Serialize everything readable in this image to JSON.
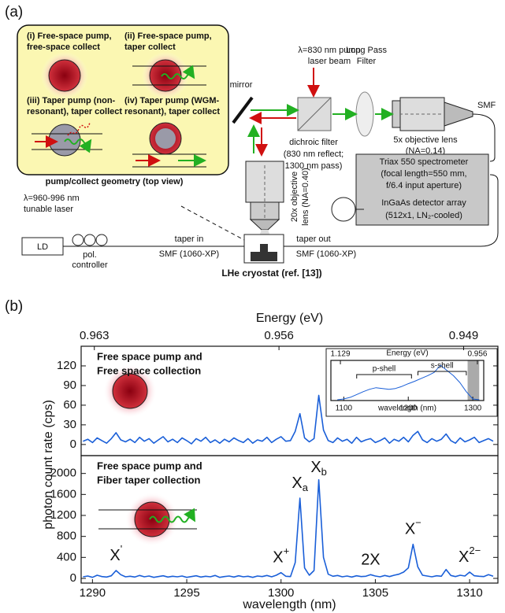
{
  "diagram": {
    "label": "(a)",
    "geometry": {
      "i": [
        "(i) Free-space pump,",
        "free-space collect"
      ],
      "ii": [
        "(ii) Free-space pump,",
        "taper collect"
      ],
      "iii": [
        "(iii) Taper pump (non-",
        "resonant), taper collect"
      ],
      "iv": [
        "(iv) Taper pump (WGM-",
        "resonant), taper collect"
      ],
      "caption": "pump/collect geometry (top view)"
    },
    "pump_laser": [
      "λ=830 nm pump",
      "laser beam"
    ],
    "long_pass": [
      "Long Pass",
      "Filter"
    ],
    "mirror": "mirror",
    "dichroic": [
      "dichroic filter",
      "(830 nm reflect;",
      "1300 nm pass)"
    ],
    "objective_5x": [
      "5x objective lens",
      "(NA=0.14)"
    ],
    "smf": "SMF",
    "spectrometer": [
      "Triax 550 spectrometer",
      "(focal length=550 mm,",
      "f/6.4 input aperture)"
    ],
    "detector": [
      "InGaAs detector array",
      "(512x1, LN₂-cooled)"
    ],
    "objective_20x": [
      "20x objective",
      "lens (NA=0.40)"
    ],
    "tunable_laser": [
      "λ=960-996 nm",
      "tunable laser"
    ],
    "ld": "LD",
    "pol": [
      "pol.",
      "controller"
    ],
    "taper_in": [
      "taper in",
      "SMF (1060-XP)"
    ],
    "taper_out": [
      "taper out",
      "SMF (1060-XP)"
    ],
    "cryostat": "LHe cryostat (ref. [13])"
  },
  "panel_b_label": "(b)",
  "chart_data": [
    {
      "type": "line",
      "title": [
        "Free space pump and",
        "Free space collection"
      ],
      "ylabel": "photon count rate (cps)",
      "x2label": "Energy (eV)",
      "x2lim": [
        0.9635,
        0.9477
      ],
      "x2ticks": [
        0.963,
        0.956,
        0.949
      ],
      "xlim": [
        1289.4,
        1311.5
      ],
      "ylim": [
        -17,
        150
      ],
      "yticks": [
        0,
        30,
        60,
        90,
        120
      ],
      "x": [
        1289.5,
        1289.75,
        1290,
        1290.25,
        1290.5,
        1290.75,
        1291,
        1291.25,
        1291.5,
        1291.75,
        1292,
        1292.25,
        1292.5,
        1292.75,
        1293,
        1293.25,
        1293.5,
        1293.75,
        1294,
        1294.25,
        1294.5,
        1294.75,
        1295,
        1295.25,
        1295.5,
        1295.75,
        1296,
        1296.25,
        1296.5,
        1296.75,
        1297,
        1297.25,
        1297.5,
        1297.75,
        1298,
        1298.25,
        1298.5,
        1298.75,
        1299,
        1299.25,
        1299.5,
        1299.75,
        1300,
        1300.25,
        1300.5,
        1300.75,
        1301,
        1301.25,
        1301.5,
        1301.75,
        1302,
        1302.25,
        1302.5,
        1302.75,
        1303,
        1303.25,
        1303.5,
        1303.75,
        1304,
        1304.25,
        1304.5,
        1304.75,
        1305,
        1305.25,
        1305.5,
        1305.75,
        1306,
        1306.25,
        1306.5,
        1306.75,
        1307,
        1307.25,
        1307.5,
        1307.75,
        1308,
        1308.25,
        1308.5,
        1308.75,
        1309,
        1309.25,
        1309.5,
        1309.75,
        1310,
        1310.25,
        1310.5,
        1310.75,
        1311,
        1311.25
      ],
      "series": [
        {
          "color": "#1a5fd8",
          "values": [
            5,
            8,
            3,
            10,
            6,
            2,
            9,
            18,
            7,
            4,
            8,
            3,
            11,
            5,
            9,
            2,
            7,
            12,
            4,
            8,
            3,
            10,
            6,
            1,
            9,
            5,
            11,
            3,
            7,
            2,
            8,
            4,
            10,
            6,
            3,
            9,
            2,
            7,
            5,
            11,
            3,
            8,
            12,
            5,
            6,
            20,
            47,
            10,
            4,
            9,
            75,
            22,
            6,
            3,
            10,
            5,
            8,
            2,
            11,
            4,
            7,
            9,
            3,
            6,
            10,
            2,
            8,
            5,
            11,
            4,
            14,
            20,
            7,
            3,
            9,
            5,
            8,
            16,
            6,
            2,
            10,
            4,
            7,
            11,
            3,
            6,
            9,
            5
          ]
        }
      ]
    },
    {
      "type": "line",
      "title": [
        "Free space pump and",
        "Fiber taper collection"
      ],
      "xlabel": "wavelength (nm)",
      "xlim": [
        1289.4,
        1311.5
      ],
      "xticks": [
        1290,
        1295,
        1300,
        1305,
        1310
      ],
      "ylim": [
        -90,
        2340
      ],
      "yticks": [
        0,
        400,
        800,
        1200,
        1600,
        2000
      ],
      "x": [
        1289.5,
        1289.75,
        1290,
        1290.25,
        1290.5,
        1290.75,
        1291,
        1291.25,
        1291.5,
        1291.75,
        1292,
        1292.25,
        1292.5,
        1292.75,
        1293,
        1293.25,
        1293.5,
        1293.75,
        1294,
        1294.25,
        1294.5,
        1294.75,
        1295,
        1295.25,
        1295.5,
        1295.75,
        1296,
        1296.25,
        1296.5,
        1296.75,
        1297,
        1297.25,
        1297.5,
        1297.75,
        1298,
        1298.25,
        1298.5,
        1298.75,
        1299,
        1299.25,
        1299.5,
        1299.75,
        1300,
        1300.25,
        1300.5,
        1300.75,
        1301,
        1301.25,
        1301.5,
        1301.75,
        1302,
        1302.25,
        1302.5,
        1302.75,
        1303,
        1303.25,
        1303.5,
        1303.75,
        1304,
        1304.25,
        1304.5,
        1304.75,
        1305,
        1305.25,
        1305.5,
        1305.75,
        1306,
        1306.25,
        1306.5,
        1306.75,
        1307,
        1307.25,
        1307.5,
        1307.75,
        1308,
        1308.25,
        1308.5,
        1308.75,
        1309,
        1309.25,
        1309.5,
        1309.75,
        1310,
        1310.25,
        1310.5,
        1310.75,
        1311,
        1311.25
      ],
      "series": [
        {
          "color": "#1a5fd8",
          "values": [
            30,
            45,
            20,
            60,
            35,
            25,
            50,
            150,
            70,
            30,
            40,
            25,
            55,
            30,
            45,
            20,
            35,
            50,
            25,
            40,
            30,
            45,
            20,
            35,
            50,
            25,
            40,
            30,
            55,
            20,
            35,
            45,
            25,
            50,
            30,
            40,
            20,
            45,
            35,
            55,
            30,
            60,
            110,
            40,
            35,
            300,
            1530,
            200,
            60,
            150,
            1880,
            400,
            80,
            40,
            55,
            30,
            45,
            25,
            50,
            35,
            40,
            70,
            45,
            30,
            55,
            35,
            60,
            80,
            120,
            200,
            650,
            220,
            60,
            45,
            30,
            50,
            40,
            170,
            55,
            35,
            60,
            45,
            120,
            50,
            40,
            35,
            70,
            40
          ]
        }
      ],
      "annotations": [
        {
          "base": "X",
          "sup": "'",
          "x": 1291.25
        },
        {
          "base": "X",
          "sup": "+",
          "x": 1300
        },
        {
          "base": "X",
          "sub": "a",
          "x": 1301
        },
        {
          "base": "X",
          "sub": "b",
          "x": 1302
        },
        {
          "base": "2X",
          "x": 1304.75
        },
        {
          "base": "X",
          "sup": "−",
          "x": 1307
        },
        {
          "base": "X",
          "sup": "2−",
          "x": 1310
        }
      ]
    },
    {
      "type": "line",
      "xlabel": "wavelength (nm)",
      "x2label": "Energy (eV)",
      "xlim": [
        1080,
        1317
      ],
      "xticks": [
        1100,
        1200,
        1300
      ],
      "x2lim": [
        1.141,
        0.948
      ],
      "x2ticks": [
        1.129,
        0.956
      ],
      "ylim": [
        0,
        100
      ],
      "shaded_region": [
        1292,
        1310
      ],
      "brackets": [
        {
          "text": "p-shell",
          "range": [
            1120,
            1205
          ]
        },
        {
          "text": "s-shell",
          "range": [
            1215,
            1290
          ]
        }
      ],
      "x": [
        1090,
        1100,
        1110,
        1120,
        1130,
        1140,
        1150,
        1160,
        1170,
        1180,
        1190,
        1200,
        1210,
        1220,
        1230,
        1240,
        1250,
        1260,
        1270,
        1280,
        1290,
        1300,
        1310
      ],
      "series": [
        {
          "color": "#1a5fd8",
          "values": [
            2,
            4,
            8,
            15,
            22,
            28,
            32,
            30,
            28,
            30,
            35,
            42,
            48,
            55,
            62,
            70,
            88,
            75,
            62,
            45,
            22,
            4,
            2
          ]
        }
      ]
    }
  ]
}
